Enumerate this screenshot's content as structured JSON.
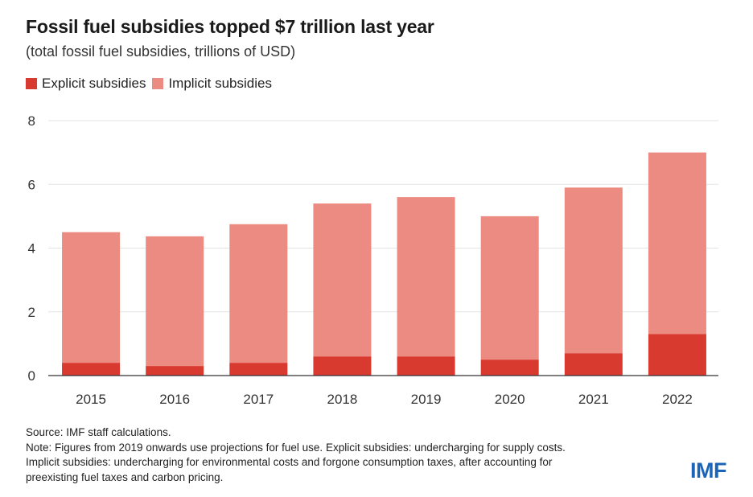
{
  "title": "Fossil fuel subsidies topped $7 trillion last year",
  "subtitle": "(total fossil fuel subsidies, trillions of USD)",
  "colors": {
    "explicit": "#d93a30",
    "implicit": "#ec8b82",
    "grid": "#e3e3e3",
    "axis": "#333333",
    "logo": "#1b64b7"
  },
  "chart_data": {
    "type": "bar",
    "stacked": true,
    "categories": [
      "2015",
      "2016",
      "2017",
      "2018",
      "2019",
      "2020",
      "2021",
      "2022"
    ],
    "series": [
      {
        "name": "Explicit subsidies",
        "values": [
          0.4,
          0.3,
          0.4,
          0.6,
          0.6,
          0.5,
          0.7,
          1.3
        ]
      },
      {
        "name": "Implicit subsidies",
        "values": [
          4.1,
          4.07,
          4.35,
          4.8,
          5.0,
          4.5,
          5.2,
          5.7
        ]
      }
    ],
    "ylim": [
      0,
      8
    ],
    "yticks": [
      "0",
      "2",
      "4",
      "6",
      "8"
    ],
    "grid": true,
    "legend_position": "top-left"
  },
  "footer": {
    "source": "Source: IMF staff calculations.",
    "note_line1": "Note: Figures from 2019 onwards use projections for fuel use. Explicit subsidies: undercharging for supply costs.",
    "note_line2": "Implicit subsidies: undercharging for environmental costs and forgone consumption taxes, after accounting for",
    "note_line3": "preexisting fuel taxes and carbon pricing."
  },
  "logo": "IMF"
}
